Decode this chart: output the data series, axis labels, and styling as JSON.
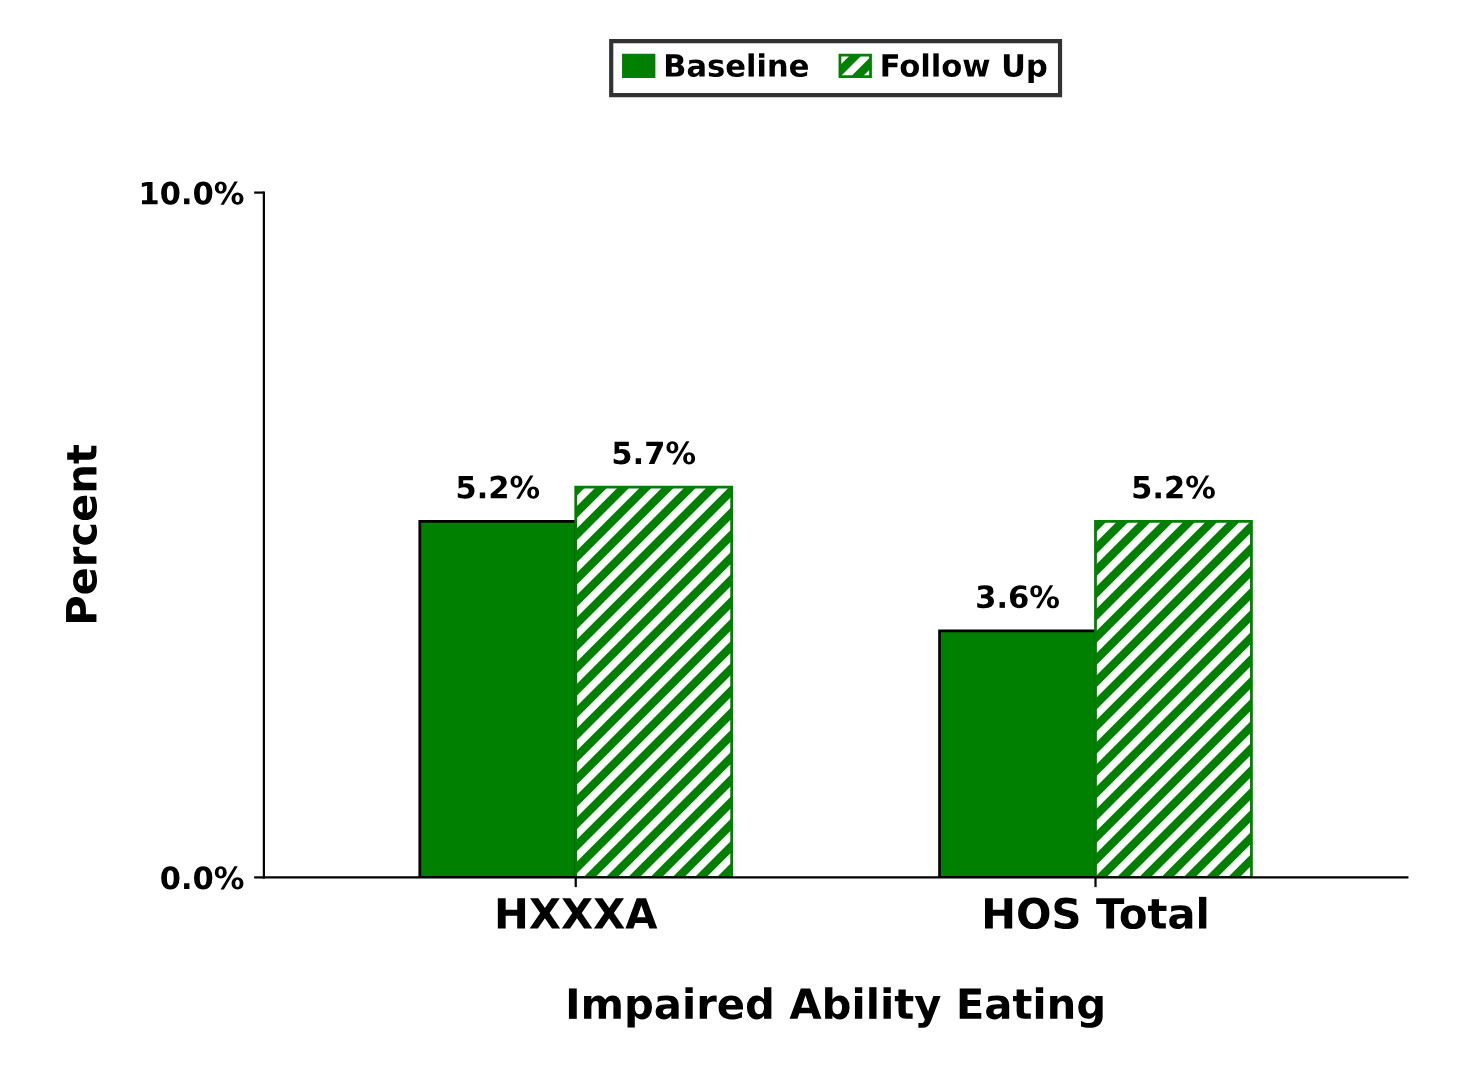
{
  "chart_data": {
    "type": "bar",
    "xlabel": "Impaired Ability Eating",
    "ylabel": "Percent",
    "categories": [
      "HXXXA",
      "HOS Total"
    ],
    "series": [
      {
        "name": "Baseline",
        "color": "#008000",
        "values": [
          5.2,
          3.6
        ],
        "value_labels": [
          "5.2%",
          "3.6%"
        ]
      },
      {
        "name": "Follow Up",
        "color": "#008000",
        "values": [
          5.7,
          5.2
        ],
        "value_labels": [
          "5.7%",
          "5.2%"
        ]
      }
    ],
    "ylim": [
      0,
      10
    ],
    "yticks": [
      {
        "value": 0,
        "label": "0.0%"
      },
      {
        "value": 10,
        "label": "10.0%"
      }
    ],
    "grid": false,
    "legend": "top"
  }
}
